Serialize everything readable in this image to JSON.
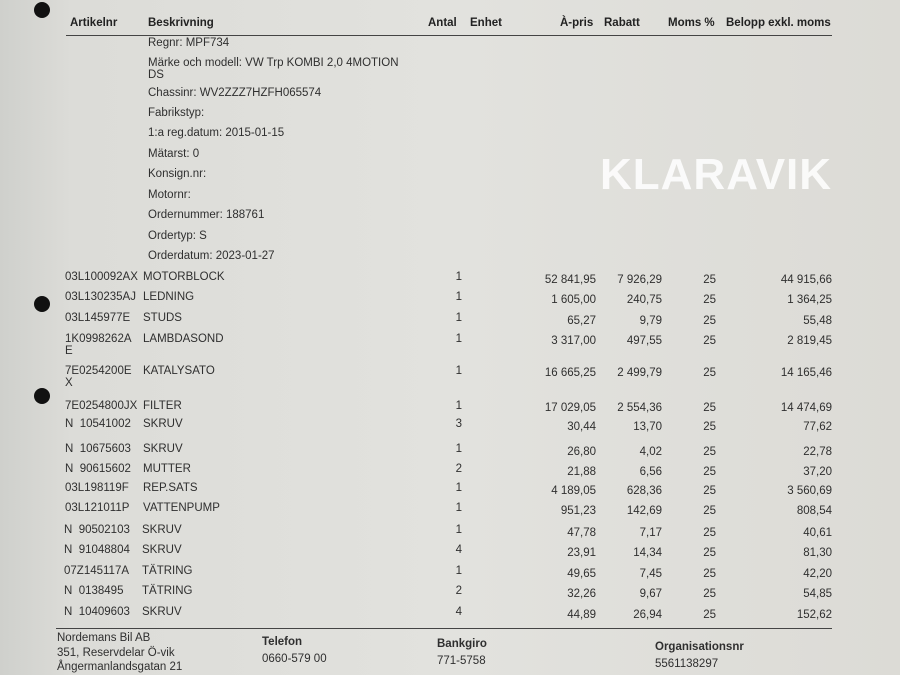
{
  "header": {
    "columns": [
      "Artikelnr",
      "Beskrivning",
      "Antal",
      "Enhet",
      "À-pris",
      "Rabatt",
      "Moms %",
      "Belopp exkl. moms"
    ]
  },
  "vehicle_info": [
    "Regnr: MPF734",
    "Märke och modell: VW Trp KOMBI 2,0 4MOTION\nDS",
    "Chassinr: WV2ZZZ7HZFH065574",
    "Fabrikstyp:",
    "1:a reg.datum: 2015-01-15",
    "Mätarst: 0",
    "Konsign.nr:",
    "Motornr:",
    "Ordernummer: 188761",
    "Ordertyp: S",
    "Orderdatum: 2023-01-27"
  ],
  "rows": [
    {
      "art": "03L100092AX",
      "desc": "MOTORBLOCK",
      "qty": "1",
      "price": "52 841,95",
      "discount": "7 926,29",
      "vat": "25",
      "amount": "44 915,66"
    },
    {
      "art": "03L130235AJ",
      "desc": "LEDNING",
      "qty": "1",
      "price": "1 605,00",
      "discount": "240,75",
      "vat": "25",
      "amount": "1 364,25"
    },
    {
      "art": "03L145977E",
      "desc": "STUDS",
      "qty": "1",
      "price": "65,27",
      "discount": "9,79",
      "vat": "25",
      "amount": "55,48"
    },
    {
      "art": "1K0998262A\nE",
      "desc": "LAMBDASOND",
      "qty": "1",
      "price": "3 317,00",
      "discount": "497,55",
      "vat": "25",
      "amount": "2 819,45"
    },
    {
      "art": "7E0254200E\nX",
      "desc": "KATALYSATO",
      "qty": "1",
      "price": "16 665,25",
      "discount": "2 499,79",
      "vat": "25",
      "amount": "14 165,46"
    },
    {
      "art": "7E0254800JX",
      "desc": "FILTER",
      "qty": "1",
      "price": "17 029,05",
      "discount": "2 554,36",
      "vat": "25",
      "amount": "14 474,69"
    },
    {
      "art": "N  10541002",
      "desc": "SKRUV",
      "qty": "3",
      "price": "30,44",
      "discount": "13,70",
      "vat": "25",
      "amount": "77,62"
    },
    {
      "art": "N  10675603",
      "desc": "SKRUV",
      "qty": "1",
      "price": "26,80",
      "discount": "4,02",
      "vat": "25",
      "amount": "22,78"
    },
    {
      "art": "N  90615602",
      "desc": "MUTTER",
      "qty": "2",
      "price": "21,88",
      "discount": "6,56",
      "vat": "25",
      "amount": "37,20"
    },
    {
      "art": "03L198119F",
      "desc": "REP.SATS",
      "qty": "1",
      "price": "4 189,05",
      "discount": "628,36",
      "vat": "25",
      "amount": "3 560,69"
    },
    {
      "art": "03L121011P",
      "desc": "VATTENPUMP",
      "qty": "1",
      "price": "951,23",
      "discount": "142,69",
      "vat": "25",
      "amount": "808,54"
    },
    {
      "art": "N  90502103",
      "desc": "SKRUV",
      "qty": "1",
      "price": "47,78",
      "discount": "7,17",
      "vat": "25",
      "amount": "40,61"
    },
    {
      "art": "N  91048804",
      "desc": "SKRUV",
      "qty": "4",
      "price": "23,91",
      "discount": "14,34",
      "vat": "25",
      "amount": "81,30"
    },
    {
      "art": "07Z145117A",
      "desc": "TÄTRING",
      "qty": "1",
      "price": "49,65",
      "discount": "7,45",
      "vat": "25",
      "amount": "42,20"
    },
    {
      "art": "N  0138495",
      "desc": "TÄTRING",
      "qty": "2",
      "price": "32,26",
      "discount": "9,67",
      "vat": "25",
      "amount": "54,85"
    },
    {
      "art": "N  10409603",
      "desc": "SKRUV",
      "qty": "4",
      "price": "44,89",
      "discount": "26,94",
      "vat": "25",
      "amount": "152,62"
    }
  ],
  "footer": {
    "company": "Nordemans Bil AB",
    "address1": "351, Reservdelar Ö-vik",
    "address2": "Ångermanlandsgatan 21",
    "phone_label": "Telefon",
    "phone": "0660-579 00",
    "bankgiro_label": "Bankgiro",
    "bankgiro": "771-5758",
    "org_label": "Organisationsnr",
    "org": "5561138297"
  },
  "watermark": "KLARAVIK"
}
